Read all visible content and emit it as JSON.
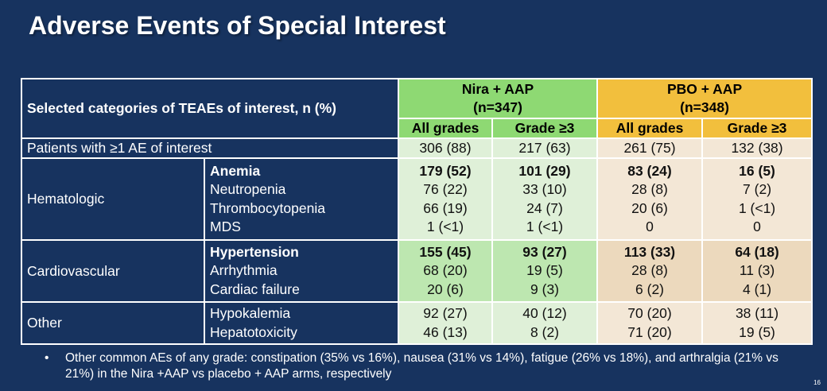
{
  "title": "Adverse Events of Special Interest",
  "table": {
    "header_label": "Selected categories of TEAEs of interest, n (%)",
    "groups": [
      {
        "name": "Nira + AAP",
        "n": "(n=347)"
      },
      {
        "name": "PBO + AAP",
        "n": "(n=348)"
      }
    ],
    "subheaders": [
      "All grades",
      "Grade ≥3",
      "All grades",
      "Grade ≥3"
    ],
    "overall": {
      "label": "Patients with ≥1 AE of interest",
      "values": [
        "306 (88)",
        "217 (63)",
        "261 (75)",
        "132 (38)"
      ]
    },
    "sections": [
      {
        "category": "Hematologic",
        "items": [
          {
            "name": "Anemia",
            "bold": true,
            "values": [
              "179 (52)",
              "101 (29)",
              "83 (24)",
              "16 (5)"
            ]
          },
          {
            "name": "Neutropenia",
            "bold": false,
            "values": [
              "76 (22)",
              "33 (10)",
              "28 (8)",
              "7 (2)"
            ]
          },
          {
            "name": "Thrombocytopenia",
            "bold": false,
            "values": [
              "66 (19)",
              "24 (7)",
              "20 (6)",
              "1 (<1)"
            ]
          },
          {
            "name": "MDS",
            "bold": false,
            "values": [
              "1 (<1)",
              "1 (<1)",
              "0",
              "0"
            ]
          }
        ]
      },
      {
        "category": "Cardiovascular",
        "items": [
          {
            "name": "Hypertension",
            "bold": true,
            "values": [
              "155 (45)",
              "93 (27)",
              "113 (33)",
              "64 (18)"
            ]
          },
          {
            "name": "Arrhythmia",
            "bold": false,
            "values": [
              "68 (20)",
              "19 (5)",
              "28 (8)",
              "11 (3)"
            ]
          },
          {
            "name": "Cardiac failure",
            "bold": false,
            "values": [
              "20 (6)",
              "9 (3)",
              "6 (2)",
              "4 (1)"
            ]
          }
        ]
      },
      {
        "category": "Other",
        "items": [
          {
            "name": "Hypokalemia",
            "bold": false,
            "values": [
              "92 (27)",
              "40 (12)",
              "70 (20)",
              "38 (11)"
            ]
          },
          {
            "name": "Hepatotoxicity",
            "bold": false,
            "values": [
              "46 (13)",
              "8 (2)",
              "71 (20)",
              "19 (5)"
            ]
          }
        ]
      }
    ]
  },
  "footnote": {
    "bullet": "•",
    "text": "Other common AEs of any grade: constipation (35% vs 16%), nausea (31% vs 14%), fatigue (26% vs 18%), and arthralgia (21% vs 21%) in the Nira +AAP vs placebo + AAP arms, respectively"
  },
  "page_number": "16",
  "colors": {
    "background": "#17335f",
    "nira_header": "#8ed973",
    "pbo_header": "#f2bf3d",
    "nira_cell": "#dff0d8",
    "pbo_cell": "#f3e7d6"
  }
}
